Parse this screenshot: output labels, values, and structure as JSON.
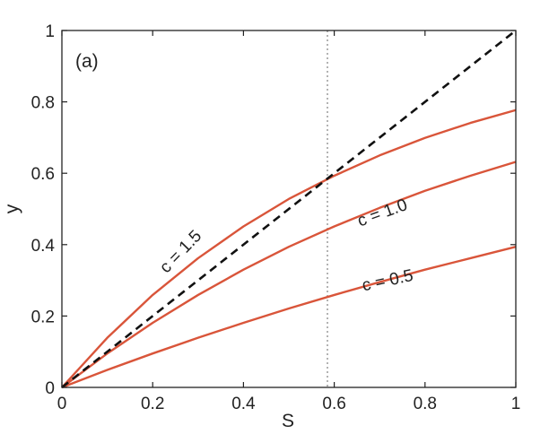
{
  "panel_label": "(a)",
  "chart_data": {
    "type": "line",
    "xlabel": "S",
    "ylabel": "y",
    "xlim": [
      0,
      1
    ],
    "ylim": [
      0,
      1
    ],
    "x_ticks": [
      "0",
      "0.2",
      "0.4",
      "0.6",
      "0.8",
      "1"
    ],
    "y_ticks": [
      "0",
      "0.2",
      "0.4",
      "0.6",
      "0.8",
      "1"
    ],
    "grid": false,
    "vertical_reference_x": 0.585,
    "series": [
      {
        "name": "c = 1.5",
        "color": "#d9553a",
        "style": "solid",
        "x": [
          0,
          0.1,
          0.2,
          0.3,
          0.4,
          0.5,
          0.6,
          0.7,
          0.8,
          0.9,
          1.0
        ],
        "y": [
          0,
          0.139,
          0.259,
          0.362,
          0.451,
          0.528,
          0.593,
          0.65,
          0.699,
          0.741,
          0.777
        ]
      },
      {
        "name": "c = 1.0",
        "color": "#d9553a",
        "style": "solid",
        "x": [
          0,
          0.1,
          0.2,
          0.3,
          0.4,
          0.5,
          0.6,
          0.7,
          0.8,
          0.9,
          1.0
        ],
        "y": [
          0,
          0.095,
          0.181,
          0.259,
          0.33,
          0.394,
          0.451,
          0.503,
          0.551,
          0.593,
          0.632
        ]
      },
      {
        "name": "c = 0.5",
        "color": "#d9553a",
        "style": "solid",
        "x": [
          0,
          0.1,
          0.2,
          0.3,
          0.4,
          0.5,
          0.6,
          0.7,
          0.8,
          0.9,
          1.0
        ],
        "y": [
          0,
          0.049,
          0.095,
          0.139,
          0.181,
          0.221,
          0.259,
          0.295,
          0.33,
          0.362,
          0.394
        ]
      },
      {
        "name": "y = S",
        "color": "#111111",
        "style": "dashed",
        "x": [
          0,
          1
        ],
        "y": [
          0,
          1
        ]
      }
    ],
    "annotations": [
      {
        "text": "c = 1.5",
        "x": 0.27,
        "y": 0.37,
        "rotation": -46
      },
      {
        "text": "c = 1.0",
        "x": 0.71,
        "y": 0.475,
        "rotation": -20
      },
      {
        "text": "c = 0.5",
        "x": 0.72,
        "y": 0.285,
        "rotation": -12
      }
    ]
  }
}
